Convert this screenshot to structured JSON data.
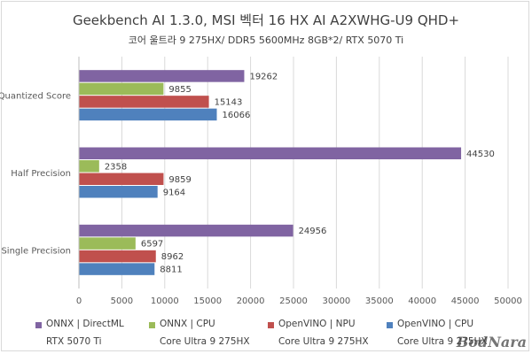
{
  "title": "Geekbench AI 1.3.0,  MSI 벡터 16 HX AI A2XWHG-U9 QHD+",
  "subtitle": "코어 울트라 9 275HX/ DDR5 5600MHz 8GB*2/ RTX 5070 Ti",
  "watermark": "BodNara",
  "colors": {
    "ONNX | DirectML": "#8064a2",
    "ONNX | CPU": "#9bbb59",
    "OpenVINO | NPU": "#c0504d",
    "OpenVINO | CPU": "#4f81bd"
  },
  "legend": [
    {
      "label": "ONNX | DirectML",
      "sub": "RTX 5070 Ti",
      "color": "#8064a2"
    },
    {
      "label": "ONNX | CPU",
      "sub": "Core Ultra 9 275HX",
      "color": "#9bbb59"
    },
    {
      "label": "OpenVINO | NPU",
      "sub": "Core Ultra 9 275HX",
      "color": "#c0504d"
    },
    {
      "label": "OpenVINO | CPU",
      "sub": "Core Ultra 9 275HX",
      "color": "#4f81bd"
    }
  ],
  "chart_data": {
    "type": "bar",
    "orientation": "horizontal",
    "title": "Geekbench AI 1.3.0,  MSI 벡터 16 HX AI A2XWHG-U9 QHD+",
    "subtitle": "코어 울트라 9 275HX/ DDR5 5600MHz 8GB*2/ RTX 5070 Ti",
    "categories": [
      "Quantized Score",
      "Half Precision",
      "Single Precision"
    ],
    "series": [
      {
        "name": "ONNX | DirectML",
        "values": [
          19262,
          44530,
          24956
        ]
      },
      {
        "name": "ONNX | CPU",
        "values": [
          9855,
          2358,
          6597
        ]
      },
      {
        "name": "OpenVINO | NPU",
        "values": [
          15143,
          9859,
          8962
        ]
      },
      {
        "name": "OpenVINO | CPU",
        "values": [
          16066,
          9164,
          8811
        ]
      }
    ],
    "xlim": [
      0,
      50000
    ],
    "xticks": [
      "0",
      "5000",
      "10000",
      "15000",
      "20000",
      "25000",
      "30000",
      "35000",
      "40000",
      "45000",
      "50000"
    ],
    "grid": true,
    "legend_position": "bottom"
  }
}
